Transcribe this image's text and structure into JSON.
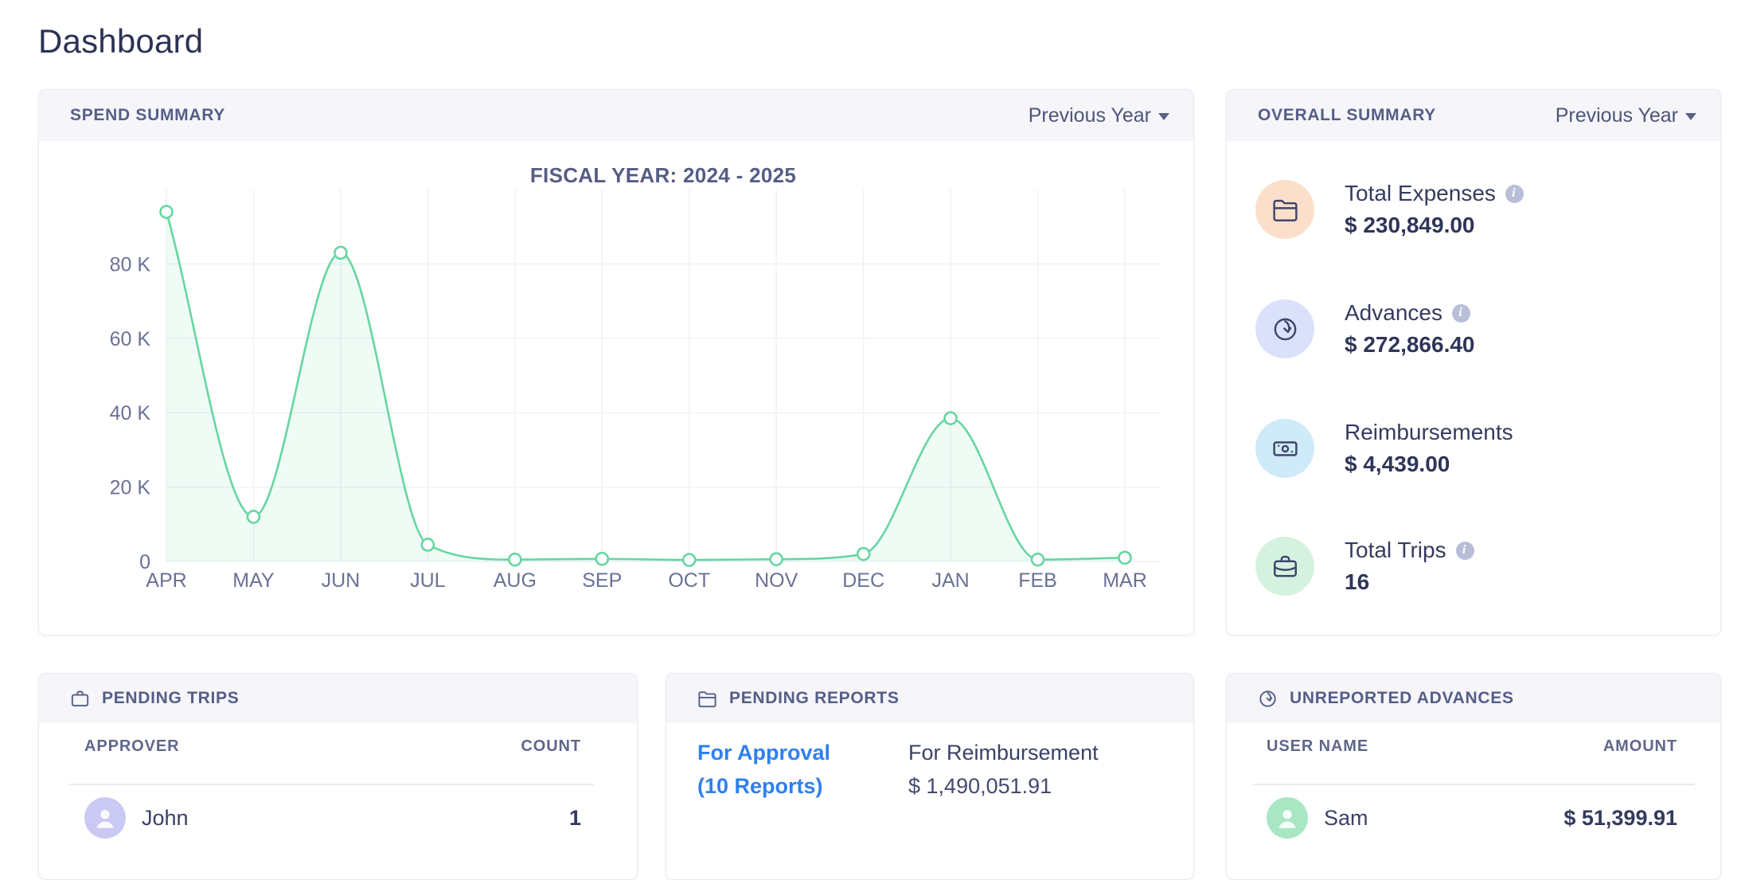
{
  "page": {
    "title": "Dashboard"
  },
  "spend_summary": {
    "title": "SPEND SUMMARY",
    "period_selector": "Previous Year",
    "chart_data": {
      "type": "area",
      "title": "FISCAL YEAR: 2024 - 2025",
      "categories": [
        "APR",
        "MAY",
        "JUN",
        "JUL",
        "AUG",
        "SEP",
        "OCT",
        "NOV",
        "DEC",
        "JAN",
        "FEB",
        "MAR"
      ],
      "values": [
        94000,
        12000,
        83000,
        4500,
        500,
        700,
        400,
        600,
        2000,
        38500,
        500,
        1000
      ],
      "y_ticks": [
        0,
        20000,
        40000,
        60000,
        80000
      ],
      "y_tick_labels": [
        "0",
        "20 K",
        "40 K",
        "60 K",
        "80 K"
      ],
      "ylim": [
        0,
        100000
      ],
      "grid": true,
      "line_color": "#66d6a0",
      "fill_color": "rgba(102,214,160,0.10)",
      "grid_color": "#eff1f5",
      "tick_color": "#6a7195"
    }
  },
  "overall_summary": {
    "title": "OVERALL SUMMARY",
    "period_selector": "Previous Year",
    "items": [
      {
        "label": "Total Expenses",
        "value": "$ 230,849.00",
        "icon": "folder-icon",
        "icon_bg": "#fbdfca",
        "has_info": true
      },
      {
        "label": "Advances",
        "value": "$ 272,866.40",
        "icon": "clock-arrow-icon",
        "icon_bg": "#dbe1fa",
        "has_info": true
      },
      {
        "label": "Reimbursements",
        "value": "$ 4,439.00",
        "icon": "banknote-icon",
        "icon_bg": "#cfeaf8",
        "has_info": false
      },
      {
        "label": "Total Trips",
        "value": "16",
        "icon": "briefcase-icon",
        "icon_bg": "#d5f2e0",
        "has_info": true
      }
    ]
  },
  "pending_trips": {
    "title": "PENDING TRIPS",
    "columns": {
      "c1": "APPROVER",
      "c2": "COUNT"
    },
    "rows": [
      {
        "name": "John",
        "count": "1",
        "avatar_bg": "#c9c9f3"
      }
    ]
  },
  "pending_reports": {
    "title": "PENDING REPORTS",
    "for_approval": {
      "label": "For Approval",
      "sub": "(10 Reports)"
    },
    "for_reimbursement": {
      "label": "For Reimbursement",
      "value": "$ 1,490,051.91"
    }
  },
  "unreported_advances": {
    "title": "UNREPORTED ADVANCES",
    "columns": {
      "c1": "USER NAME",
      "c2": "AMOUNT"
    },
    "rows": [
      {
        "name": "Sam",
        "amount": "$ 51,399.91",
        "avatar_bg": "#a9e7c4"
      }
    ]
  },
  "colors": {
    "accent_green": "#66d6a0",
    "link_blue": "#2f80f0",
    "header_bg": "#f5f5fa"
  }
}
